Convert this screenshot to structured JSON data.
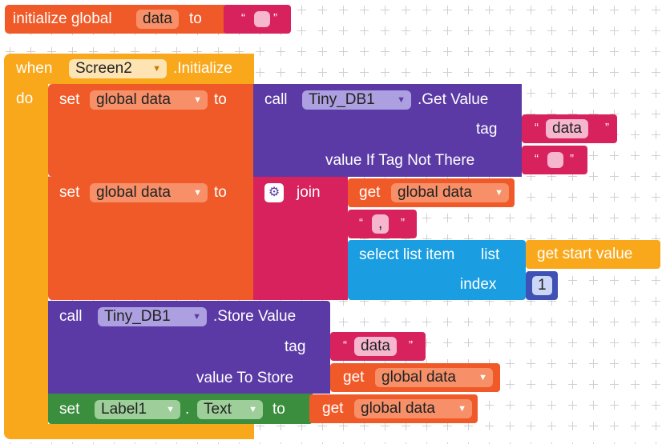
{
  "global_init": {
    "keyword": "initialize global",
    "var_name": "data",
    "to_label": "to",
    "quote_open": "“",
    "quote_close": "”"
  },
  "event": {
    "when_label": "when",
    "component": "Screen2",
    "event_name": ".Initialize",
    "do_label": "do"
  },
  "set1": {
    "set_label": "set",
    "var": "global data",
    "to_label": "to",
    "call_label": "call",
    "component": "Tiny_DB1",
    "method": ".Get Value",
    "tag_label": "tag",
    "tag_value": "data",
    "default_label": "value If Tag Not There"
  },
  "set2": {
    "set_label": "set",
    "var": "global data",
    "to_label": "to",
    "join_label": "join",
    "get_label": "get",
    "get_var": "global data",
    "separator": ",",
    "select_label": "select list item",
    "list_label": "list",
    "start_label": "get start value",
    "index_label": "index",
    "index_value": "1"
  },
  "store": {
    "call_label": "call",
    "component": "Tiny_DB1",
    "method": ".Store Value",
    "tag_label": "tag",
    "tag_value": "data",
    "value_label": "value To Store",
    "get_label": "get",
    "get_var": "global data"
  },
  "set_label": {
    "set_label": "set",
    "component": "Label1",
    "dot": ".",
    "property": "Text",
    "to_label": "to",
    "get_label": "get",
    "get_var": "global data"
  },
  "icons": {
    "dropdown": "▼",
    "gear": "⚙"
  }
}
